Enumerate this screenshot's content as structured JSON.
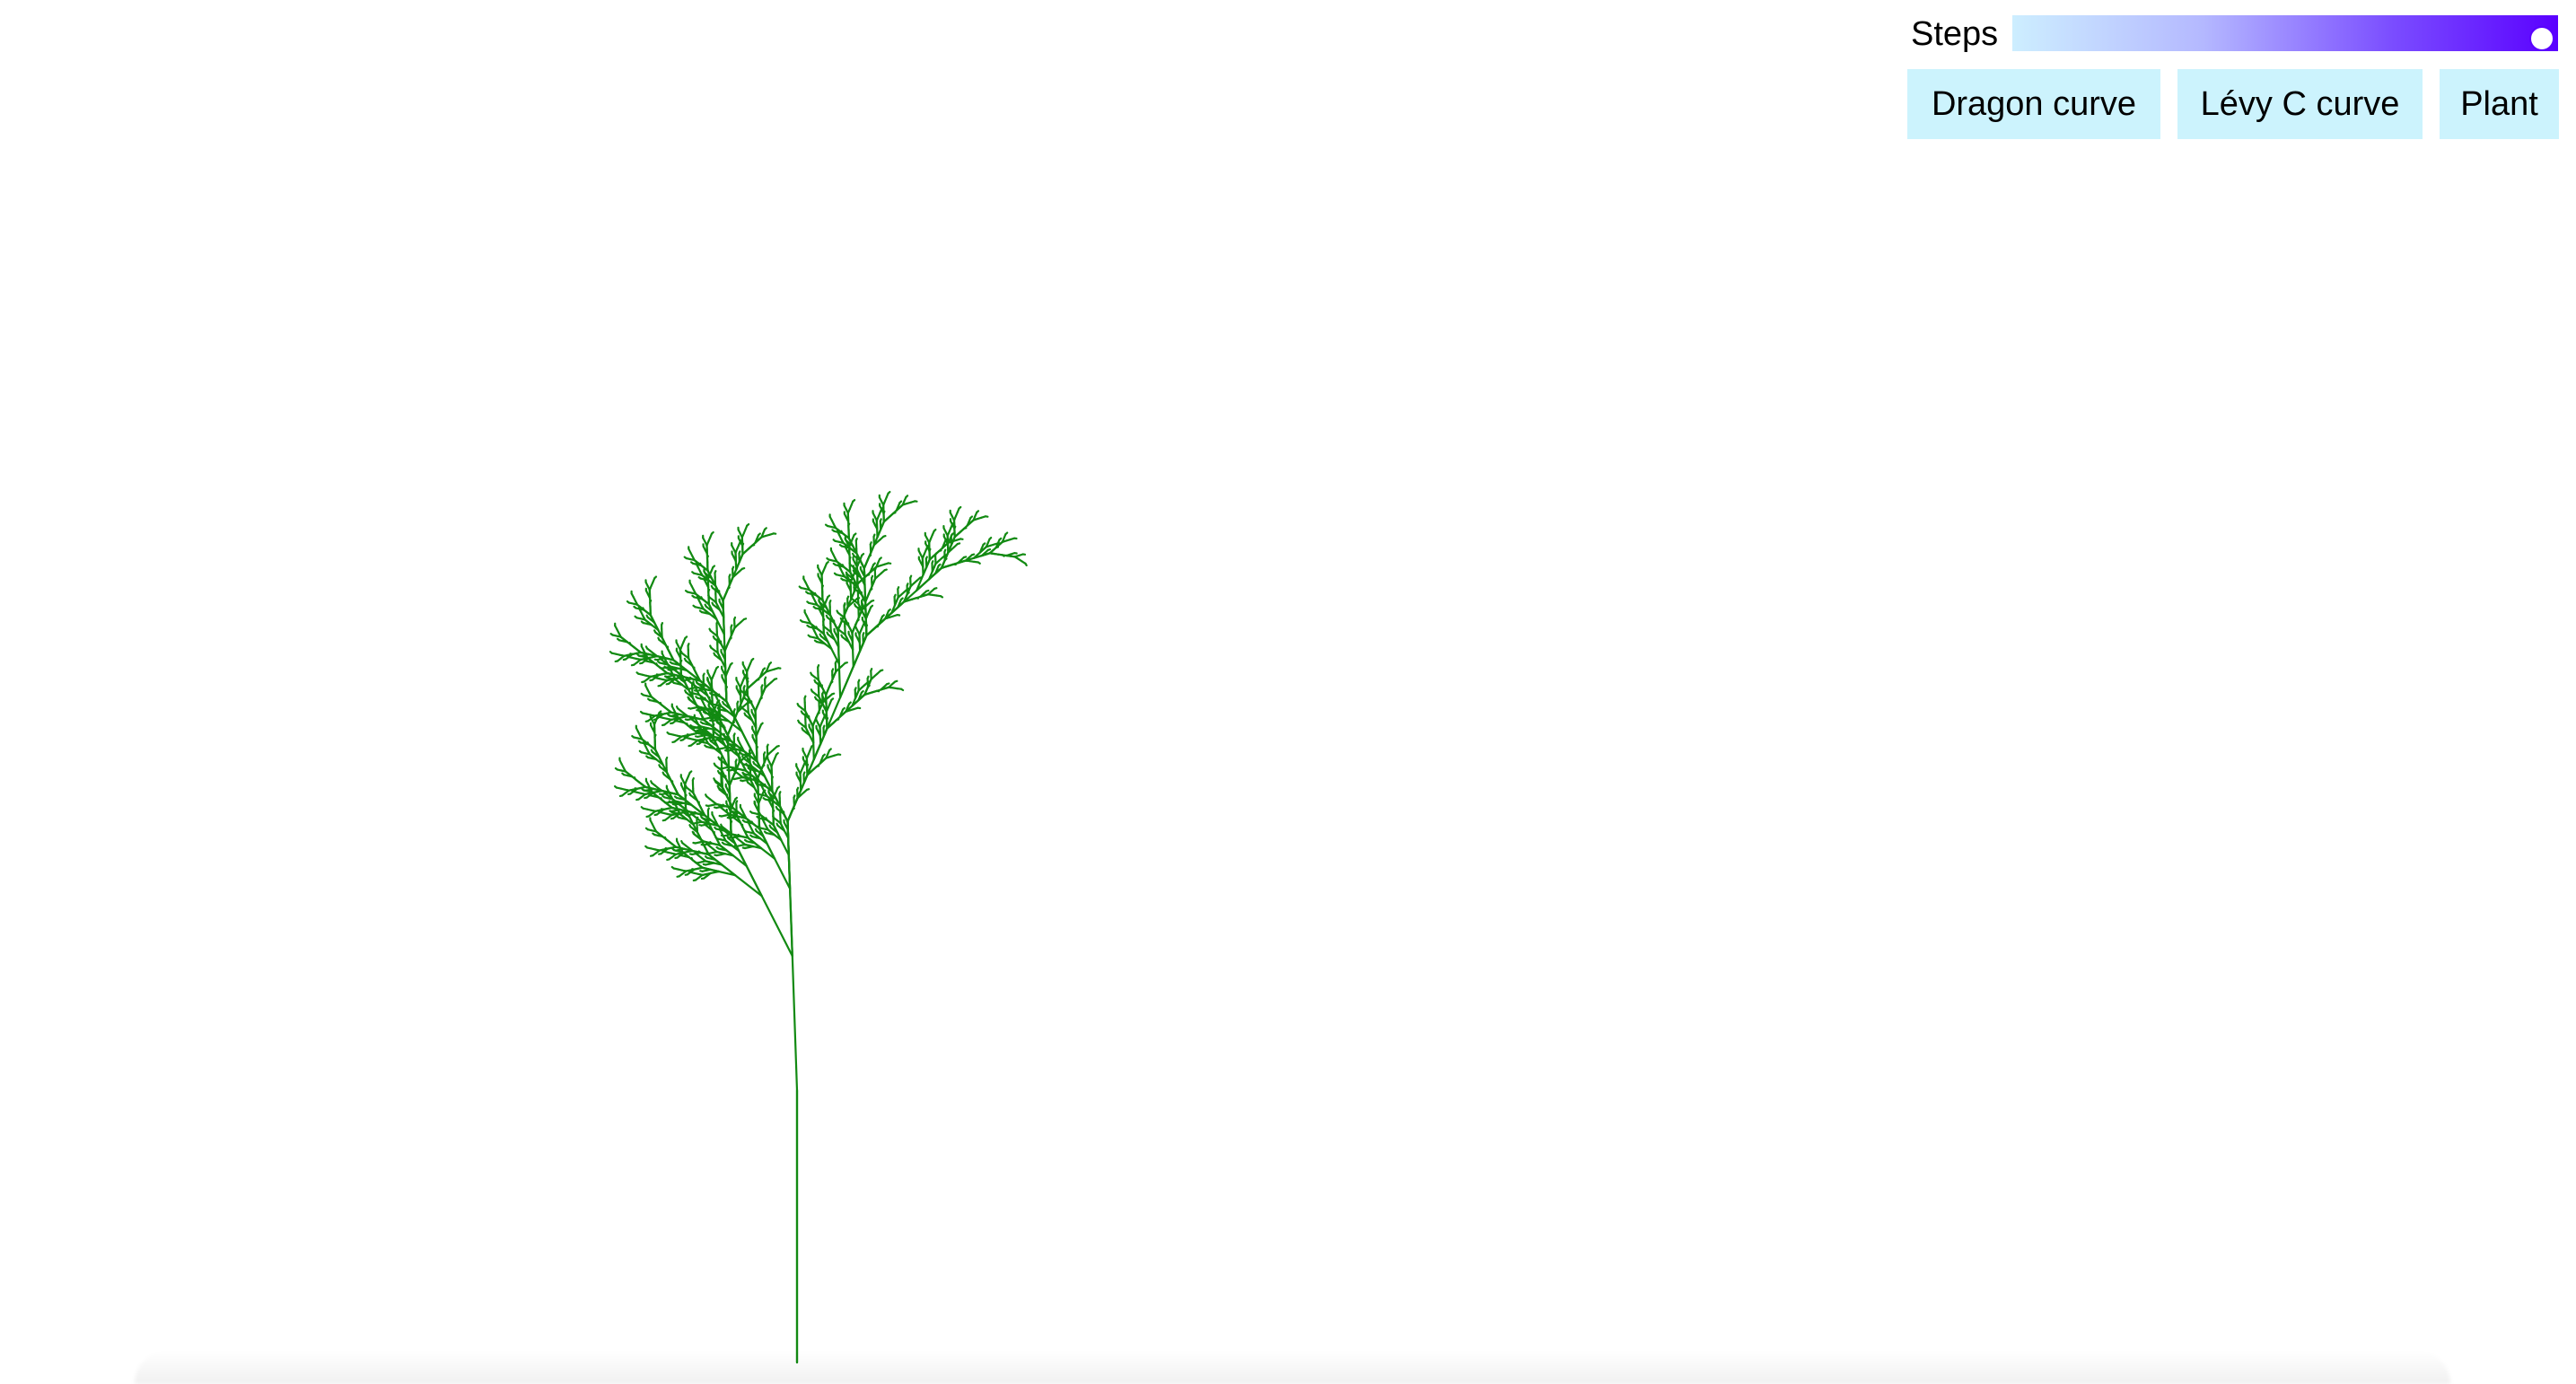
{
  "controls": {
    "steps_label": "Steps",
    "steps_slider": {
      "value_fraction": 1.0,
      "gradient_colors": [
        "#cdeeff",
        "#b4b8ff",
        "#7a4cff",
        "#5a00ff"
      ]
    },
    "buttons": {
      "dragon": "Dragon curve",
      "levy": "Lévy C curve",
      "plant": "Plant"
    },
    "button_color": "#ccf3fd"
  },
  "drawing": {
    "type": "L-system plant",
    "stroke_color": "#128a12"
  }
}
